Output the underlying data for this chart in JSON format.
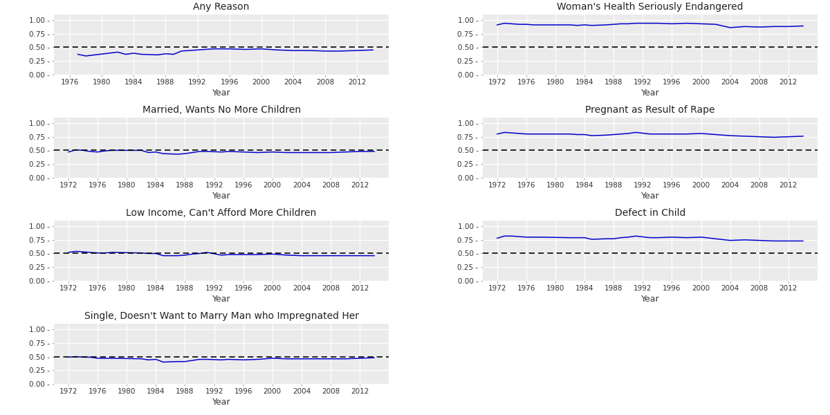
{
  "any_reason": {
    "title": "Any Reason",
    "years": [
      1977,
      1978,
      1982,
      1983,
      1984,
      1985,
      1987,
      1988,
      1989,
      1990,
      1991,
      1993,
      1994,
      1996,
      1998,
      2000,
      2002,
      2004,
      2006,
      2008,
      2010,
      2012,
      2014
    ],
    "values": [
      0.37,
      0.34,
      0.41,
      0.37,
      0.39,
      0.37,
      0.36,
      0.38,
      0.37,
      0.43,
      0.44,
      0.46,
      0.47,
      0.47,
      0.46,
      0.47,
      0.45,
      0.44,
      0.44,
      0.43,
      0.43,
      0.44,
      0.45
    ],
    "xlim": [
      1974,
      2016
    ],
    "xticks": [
      1976,
      1980,
      1984,
      1988,
      1992,
      1996,
      2000,
      2004,
      2008,
      2012
    ]
  },
  "womans_health": {
    "title": "Woman's Health Seriously Endangered",
    "years": [
      1972,
      1973,
      1974,
      1975,
      1976,
      1977,
      1978,
      1982,
      1983,
      1984,
      1985,
      1987,
      1988,
      1989,
      1990,
      1991,
      1993,
      1994,
      1996,
      1998,
      2000,
      2002,
      2004,
      2006,
      2008,
      2010,
      2012,
      2014
    ],
    "values": [
      0.91,
      0.94,
      0.93,
      0.92,
      0.92,
      0.91,
      0.91,
      0.91,
      0.9,
      0.91,
      0.9,
      0.91,
      0.92,
      0.93,
      0.93,
      0.94,
      0.94,
      0.94,
      0.93,
      0.94,
      0.93,
      0.92,
      0.86,
      0.88,
      0.87,
      0.88,
      0.88,
      0.89
    ],
    "xlim": [
      1970,
      2016
    ],
    "xticks": [
      1972,
      1976,
      1980,
      1984,
      1988,
      1992,
      1996,
      2000,
      2004,
      2008,
      2012
    ]
  },
  "married_no_more": {
    "title": "Married, Wants No More Children",
    "years": [
      1972,
      1973,
      1974,
      1975,
      1976,
      1977,
      1978,
      1982,
      1983,
      1984,
      1985,
      1987,
      1988,
      1989,
      1990,
      1991,
      1993,
      1994,
      1996,
      1998,
      2000,
      2002,
      2004,
      2006,
      2008,
      2010,
      2012,
      2014
    ],
    "values": [
      0.47,
      0.51,
      0.5,
      0.48,
      0.47,
      0.49,
      0.5,
      0.5,
      0.46,
      0.47,
      0.44,
      0.43,
      0.44,
      0.46,
      0.48,
      0.48,
      0.47,
      0.48,
      0.47,
      0.46,
      0.47,
      0.46,
      0.46,
      0.46,
      0.46,
      0.47,
      0.48,
      0.48
    ],
    "xlim": [
      1970,
      2016
    ],
    "xticks": [
      1972,
      1976,
      1980,
      1984,
      1988,
      1992,
      1996,
      2000,
      2004,
      2008,
      2012
    ]
  },
  "pregnant_rape": {
    "title": "Pregnant as Result of Rape",
    "years": [
      1972,
      1973,
      1974,
      1975,
      1976,
      1977,
      1978,
      1982,
      1983,
      1984,
      1985,
      1987,
      1988,
      1989,
      1990,
      1991,
      1993,
      1994,
      1996,
      1998,
      2000,
      2002,
      2004,
      2006,
      2008,
      2010,
      2012,
      2014
    ],
    "values": [
      0.8,
      0.83,
      0.82,
      0.81,
      0.8,
      0.8,
      0.8,
      0.8,
      0.79,
      0.79,
      0.77,
      0.78,
      0.79,
      0.8,
      0.81,
      0.83,
      0.8,
      0.8,
      0.8,
      0.8,
      0.81,
      0.79,
      0.77,
      0.76,
      0.75,
      0.74,
      0.75,
      0.76
    ],
    "xlim": [
      1970,
      2016
    ],
    "xticks": [
      1972,
      1976,
      1980,
      1984,
      1988,
      1992,
      1996,
      2000,
      2004,
      2008,
      2012
    ]
  },
  "low_income": {
    "title": "Low Income, Can't Afford More Children",
    "years": [
      1972,
      1973,
      1974,
      1975,
      1976,
      1977,
      1978,
      1982,
      1983,
      1984,
      1985,
      1987,
      1988,
      1989,
      1990,
      1991,
      1993,
      1994,
      1996,
      1998,
      2000,
      2002,
      2004,
      2006,
      2008,
      2010,
      2012,
      2014
    ],
    "values": [
      0.52,
      0.54,
      0.53,
      0.52,
      0.51,
      0.51,
      0.52,
      0.51,
      0.5,
      0.5,
      0.46,
      0.46,
      0.47,
      0.49,
      0.5,
      0.52,
      0.47,
      0.48,
      0.48,
      0.48,
      0.49,
      0.47,
      0.46,
      0.46,
      0.46,
      0.46,
      0.46,
      0.46
    ],
    "xlim": [
      1970,
      2016
    ],
    "xticks": [
      1972,
      1976,
      1980,
      1984,
      1988,
      1992,
      1996,
      2000,
      2004,
      2008,
      2012
    ]
  },
  "defect_child": {
    "title": "Defect in Child",
    "years": [
      1972,
      1973,
      1974,
      1975,
      1976,
      1977,
      1978,
      1982,
      1983,
      1984,
      1985,
      1987,
      1988,
      1989,
      1990,
      1991,
      1993,
      1994,
      1996,
      1998,
      2000,
      2002,
      2004,
      2006,
      2008,
      2010,
      2012,
      2014
    ],
    "values": [
      0.78,
      0.82,
      0.82,
      0.81,
      0.8,
      0.8,
      0.8,
      0.79,
      0.79,
      0.79,
      0.76,
      0.77,
      0.77,
      0.79,
      0.8,
      0.82,
      0.79,
      0.79,
      0.8,
      0.79,
      0.8,
      0.77,
      0.74,
      0.75,
      0.74,
      0.73,
      0.73,
      0.73
    ],
    "xlim": [
      1970,
      2016
    ],
    "xticks": [
      1972,
      1976,
      1980,
      1984,
      1988,
      1992,
      1996,
      2000,
      2004,
      2008,
      2012
    ]
  },
  "single_no_marry": {
    "title": "Single, Doesn't Want to Marry Man who Impregnated Her",
    "years": [
      1972,
      1973,
      1974,
      1975,
      1976,
      1977,
      1978,
      1982,
      1983,
      1984,
      1985,
      1987,
      1988,
      1989,
      1990,
      1991,
      1993,
      1994,
      1996,
      1998,
      2000,
      2002,
      2004,
      2006,
      2008,
      2010,
      2012,
      2014
    ],
    "values": [
      0.49,
      0.5,
      0.49,
      0.49,
      0.47,
      0.47,
      0.47,
      0.46,
      0.44,
      0.45,
      0.4,
      0.41,
      0.41,
      0.43,
      0.45,
      0.45,
      0.44,
      0.45,
      0.44,
      0.45,
      0.47,
      0.46,
      0.46,
      0.46,
      0.46,
      0.46,
      0.47,
      0.48
    ],
    "xlim": [
      1970,
      2016
    ],
    "xticks": [
      1972,
      1976,
      1980,
      1984,
      1988,
      1992,
      1996,
      2000,
      2004,
      2008,
      2012
    ]
  },
  "line_color": "#0000cc",
  "dashed_color": "#000000",
  "background_color": "#ebebeb",
  "grid_color": "#ffffff",
  "xlabel": "Year",
  "ytick_labels": [
    "0.00 -",
    "0.25 -",
    "0.50 -",
    "0.75 -",
    "1.00 -"
  ],
  "yticks": [
    0.0,
    0.25,
    0.5,
    0.75,
    1.0
  ],
  "ylim": [
    0.0,
    1.1
  ]
}
